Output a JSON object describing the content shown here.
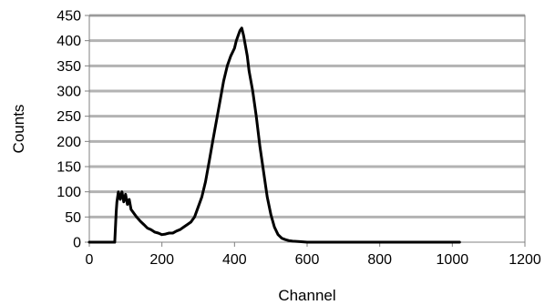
{
  "chart_data": {
    "type": "line",
    "title": "",
    "xlabel": "Channel",
    "ylabel": "Counts",
    "xlim": [
      0,
      1200
    ],
    "ylim": [
      0,
      450
    ],
    "x_ticks": [
      0,
      200,
      400,
      600,
      800,
      1000,
      1200
    ],
    "y_ticks": [
      0,
      50,
      100,
      150,
      200,
      250,
      300,
      350,
      400,
      450
    ],
    "grid": "horizontal",
    "legend": "none",
    "series": [
      {
        "line_color": "#000000",
        "x": [
          0,
          70,
          74,
          76,
          80,
          85,
          90,
          95,
          100,
          105,
          110,
          115,
          120,
          130,
          140,
          150,
          160,
          170,
          180,
          190,
          200,
          210,
          220,
          230,
          240,
          250,
          260,
          270,
          280,
          290,
          300,
          310,
          320,
          330,
          340,
          350,
          360,
          370,
          380,
          390,
          400,
          405,
          410,
          415,
          420,
          425,
          430,
          435,
          440,
          450,
          460,
          470,
          480,
          490,
          500,
          510,
          520,
          530,
          540,
          550,
          560,
          580,
          600,
          650,
          700,
          800,
          900,
          1000,
          1020
        ],
        "y": [
          0,
          0,
          60,
          80,
          100,
          85,
          100,
          80,
          95,
          75,
          85,
          65,
          60,
          50,
          42,
          35,
          28,
          25,
          20,
          18,
          15,
          16,
          18,
          18,
          22,
          25,
          30,
          35,
          40,
          50,
          70,
          90,
          120,
          160,
          200,
          240,
          280,
          320,
          350,
          370,
          385,
          400,
          410,
          420,
          425,
          410,
          390,
          370,
          340,
          300,
          250,
          190,
          140,
          90,
          55,
          30,
          15,
          8,
          5,
          3,
          2,
          1,
          0,
          0,
          0,
          0,
          0,
          0,
          0
        ]
      }
    ]
  }
}
